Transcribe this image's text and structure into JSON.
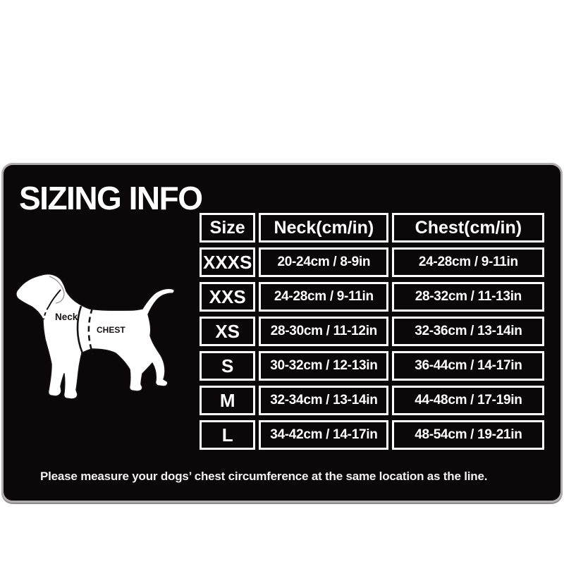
{
  "card": {
    "title": "SIZING INFO",
    "note": "Please measure your dogs’ chest circumference at the same location as the line."
  },
  "diagram": {
    "neck_label": "Neck",
    "chest_label": "CHEST"
  },
  "chart_data": {
    "type": "table",
    "title": "SIZING INFO",
    "columns": [
      "Size",
      "Neck(cm/in)",
      "Chest(cm/in)"
    ],
    "rows": [
      [
        "XXXS",
        "20-24cm / 8-9in",
        "24-28cm / 9-11in"
      ],
      [
        "XXS",
        "24-28cm / 9-11in",
        "28-32cm / 11-13in"
      ],
      [
        "XS",
        "28-30cm / 11-12in",
        "32-36cm / 13-14in"
      ],
      [
        "S",
        "30-32cm / 12-13in",
        "36-44cm / 14-17in"
      ],
      [
        "M",
        "32-34cm / 13-14in",
        "44-48cm / 17-19in"
      ],
      [
        "L",
        "34-42cm / 14-17in",
        "48-54cm / 19-21in"
      ]
    ],
    "note": "Please measure your dogs’ chest circumference at the same location as the line.",
    "layout_hints": {
      "grid": "white cell borders on black card",
      "legend": "none"
    }
  },
  "colors": {
    "page_background": "#ffffff",
    "card_background": "#0b0809",
    "card_border": "#b0adad",
    "cell_border": "#ffffff",
    "text": "#ffffff",
    "dog_fill": "#ffffff",
    "dog_line": "#151212"
  }
}
